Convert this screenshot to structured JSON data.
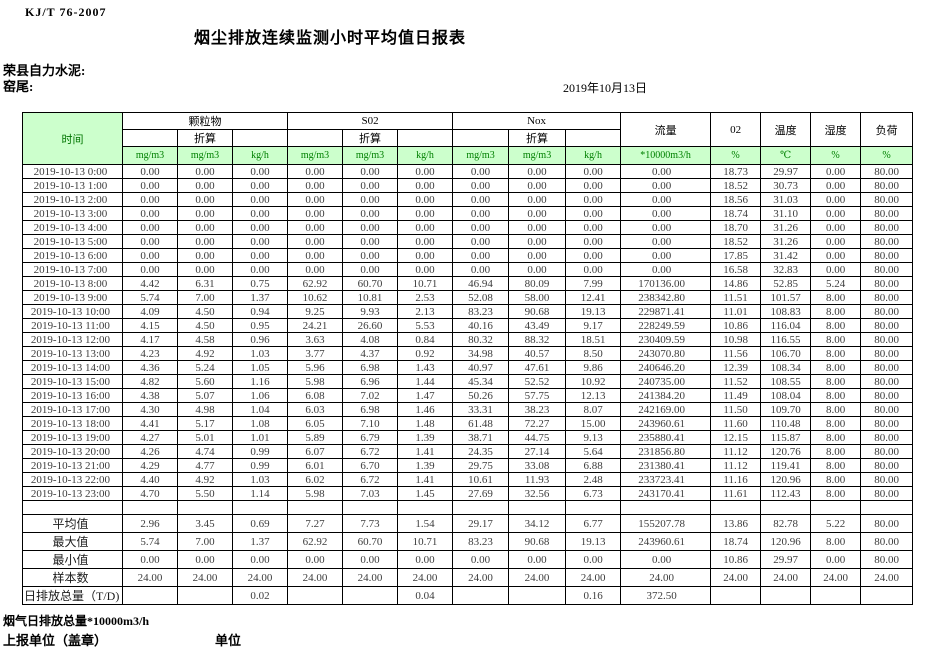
{
  "page": {
    "standard_code": "KJ/T 76-2007",
    "title": "烟尘排放连续监测小时平均值日报表",
    "company": "荣县自力水泥:",
    "location": "窑尾:",
    "date": "2019年10月13日"
  },
  "colors": {
    "header_green_bg": "#ccffcc",
    "header_green_text": "#008000"
  },
  "table": {
    "header": {
      "time": "时间",
      "group_pm": "颗粒物",
      "group_so2": "S02",
      "group_nox": "Nox",
      "converted": "折算",
      "flow": "流量",
      "o2": "02",
      "temp": "温度",
      "humidity": "湿度",
      "load": "负荷",
      "units": [
        "mg/m3",
        "mg/m3",
        "kg/h",
        "mg/m3",
        "mg/m3",
        "kg/h",
        "mg/m3",
        "mg/m3",
        "kg/h",
        "*10000m3/h",
        "%",
        "℃",
        "%",
        "%"
      ]
    },
    "rows": [
      [
        "2019-10-13 0:00",
        "0.00",
        "0.00",
        "0.00",
        "0.00",
        "0.00",
        "0.00",
        "0.00",
        "0.00",
        "0.00",
        "0.00",
        "18.73",
        "29.97",
        "0.00",
        "80.00"
      ],
      [
        "2019-10-13 1:00",
        "0.00",
        "0.00",
        "0.00",
        "0.00",
        "0.00",
        "0.00",
        "0.00",
        "0.00",
        "0.00",
        "0.00",
        "18.52",
        "30.73",
        "0.00",
        "80.00"
      ],
      [
        "2019-10-13 2:00",
        "0.00",
        "0.00",
        "0.00",
        "0.00",
        "0.00",
        "0.00",
        "0.00",
        "0.00",
        "0.00",
        "0.00",
        "18.56",
        "31.03",
        "0.00",
        "80.00"
      ],
      [
        "2019-10-13 3:00",
        "0.00",
        "0.00",
        "0.00",
        "0.00",
        "0.00",
        "0.00",
        "0.00",
        "0.00",
        "0.00",
        "0.00",
        "18.74",
        "31.10",
        "0.00",
        "80.00"
      ],
      [
        "2019-10-13 4:00",
        "0.00",
        "0.00",
        "0.00",
        "0.00",
        "0.00",
        "0.00",
        "0.00",
        "0.00",
        "0.00",
        "0.00",
        "18.70",
        "31.26",
        "0.00",
        "80.00"
      ],
      [
        "2019-10-13 5:00",
        "0.00",
        "0.00",
        "0.00",
        "0.00",
        "0.00",
        "0.00",
        "0.00",
        "0.00",
        "0.00",
        "0.00",
        "18.52",
        "31.26",
        "0.00",
        "80.00"
      ],
      [
        "2019-10-13 6:00",
        "0.00",
        "0.00",
        "0.00",
        "0.00",
        "0.00",
        "0.00",
        "0.00",
        "0.00",
        "0.00",
        "0.00",
        "17.85",
        "31.42",
        "0.00",
        "80.00"
      ],
      [
        "2019-10-13 7:00",
        "0.00",
        "0.00",
        "0.00",
        "0.00",
        "0.00",
        "0.00",
        "0.00",
        "0.00",
        "0.00",
        "0.00",
        "16.58",
        "32.83",
        "0.00",
        "80.00"
      ],
      [
        "2019-10-13 8:00",
        "4.42",
        "6.31",
        "0.75",
        "62.92",
        "60.70",
        "10.71",
        "46.94",
        "80.09",
        "7.99",
        "170136.00",
        "14.86",
        "52.85",
        "5.24",
        "80.00"
      ],
      [
        "2019-10-13 9:00",
        "5.74",
        "7.00",
        "1.37",
        "10.62",
        "10.81",
        "2.53",
        "52.08",
        "58.00",
        "12.41",
        "238342.80",
        "11.51",
        "101.57",
        "8.00",
        "80.00"
      ],
      [
        "2019-10-13 10:00",
        "4.09",
        "4.50",
        "0.94",
        "9.25",
        "9.93",
        "2.13",
        "83.23",
        "90.68",
        "19.13",
        "229871.41",
        "11.01",
        "108.83",
        "8.00",
        "80.00"
      ],
      [
        "2019-10-13 11:00",
        "4.15",
        "4.50",
        "0.95",
        "24.21",
        "26.60",
        "5.53",
        "40.16",
        "43.49",
        "9.17",
        "228249.59",
        "10.86",
        "116.04",
        "8.00",
        "80.00"
      ],
      [
        "2019-10-13 12:00",
        "4.17",
        "4.58",
        "0.96",
        "3.63",
        "4.08",
        "0.84",
        "80.32",
        "88.32",
        "18.51",
        "230409.59",
        "10.98",
        "116.55",
        "8.00",
        "80.00"
      ],
      [
        "2019-10-13 13:00",
        "4.23",
        "4.92",
        "1.03",
        "3.77",
        "4.37",
        "0.92",
        "34.98",
        "40.57",
        "8.50",
        "243070.80",
        "11.56",
        "106.70",
        "8.00",
        "80.00"
      ],
      [
        "2019-10-13 14:00",
        "4.36",
        "5.24",
        "1.05",
        "5.96",
        "6.98",
        "1.43",
        "40.97",
        "47.61",
        "9.86",
        "240646.20",
        "12.39",
        "108.34",
        "8.00",
        "80.00"
      ],
      [
        "2019-10-13 15:00",
        "4.82",
        "5.60",
        "1.16",
        "5.98",
        "6.96",
        "1.44",
        "45.34",
        "52.52",
        "10.92",
        "240735.00",
        "11.52",
        "108.55",
        "8.00",
        "80.00"
      ],
      [
        "2019-10-13 16:00",
        "4.38",
        "5.07",
        "1.06",
        "6.08",
        "7.02",
        "1.47",
        "50.26",
        "57.75",
        "12.13",
        "241384.20",
        "11.49",
        "108.04",
        "8.00",
        "80.00"
      ],
      [
        "2019-10-13 17:00",
        "4.30",
        "4.98",
        "1.04",
        "6.03",
        "6.98",
        "1.46",
        "33.31",
        "38.23",
        "8.07",
        "242169.00",
        "11.50",
        "109.70",
        "8.00",
        "80.00"
      ],
      [
        "2019-10-13 18:00",
        "4.41",
        "5.17",
        "1.08",
        "6.05",
        "7.10",
        "1.48",
        "61.48",
        "72.27",
        "15.00",
        "243960.61",
        "11.60",
        "110.48",
        "8.00",
        "80.00"
      ],
      [
        "2019-10-13 19:00",
        "4.27",
        "5.01",
        "1.01",
        "5.89",
        "6.79",
        "1.39",
        "38.71",
        "44.75",
        "9.13",
        "235880.41",
        "12.15",
        "115.87",
        "8.00",
        "80.00"
      ],
      [
        "2019-10-13 20:00",
        "4.26",
        "4.74",
        "0.99",
        "6.07",
        "6.72",
        "1.41",
        "24.35",
        "27.14",
        "5.64",
        "231856.80",
        "11.12",
        "120.76",
        "8.00",
        "80.00"
      ],
      [
        "2019-10-13 21:00",
        "4.29",
        "4.77",
        "0.99",
        "6.01",
        "6.70",
        "1.39",
        "29.75",
        "33.08",
        "6.88",
        "231380.41",
        "11.12",
        "119.41",
        "8.00",
        "80.00"
      ],
      [
        "2019-10-13 22:00",
        "4.40",
        "4.92",
        "1.03",
        "6.02",
        "6.72",
        "1.41",
        "10.61",
        "11.93",
        "2.48",
        "233723.41",
        "11.16",
        "120.96",
        "8.00",
        "80.00"
      ],
      [
        "2019-10-13 23:00",
        "4.70",
        "5.50",
        "1.14",
        "5.98",
        "7.03",
        "1.45",
        "27.69",
        "32.56",
        "6.73",
        "243170.41",
        "11.61",
        "112.43",
        "8.00",
        "80.00"
      ]
    ],
    "summary": [
      {
        "label": "平均值",
        "align": "right",
        "values": [
          "2.96",
          "3.45",
          "0.69",
          "7.27",
          "7.73",
          "1.54",
          "29.17",
          "34.12",
          "6.77",
          "155207.78",
          "13.86",
          "82.78",
          "5.22",
          "80.00"
        ]
      },
      {
        "label": "最大值",
        "align": "right",
        "values": [
          "5.74",
          "7.00",
          "1.37",
          "62.92",
          "60.70",
          "10.71",
          "83.23",
          "90.68",
          "19.13",
          "243960.61",
          "18.74",
          "120.96",
          "8.00",
          "80.00"
        ]
      },
      {
        "label": "最小值",
        "align": "right",
        "values": [
          "0.00",
          "0.00",
          "0.00",
          "0.00",
          "0.00",
          "0.00",
          "0.00",
          "0.00",
          "0.00",
          "0.00",
          "10.86",
          "29.97",
          "0.00",
          "80.00"
        ]
      },
      {
        "label": "样本数",
        "align": "right",
        "values": [
          "24.00",
          "24.00",
          "24.00",
          "24.00",
          "24.00",
          "24.00",
          "24.00",
          "24.00",
          "24.00",
          "24.00",
          "24.00",
          "24.00",
          "24.00",
          "24.00"
        ]
      },
      {
        "label": "日排放总量（T/D)",
        "align": "left",
        "values": [
          "",
          "",
          "0.02",
          "",
          "",
          "0.04",
          "",
          "",
          "0.16",
          "372.50",
          "",
          "",
          "",
          ""
        ]
      }
    ]
  },
  "footer": {
    "gas_total": "烟气日排放总量*10000m3/h",
    "report_unit": "上报单位（盖章）",
    "unit": "单位"
  }
}
